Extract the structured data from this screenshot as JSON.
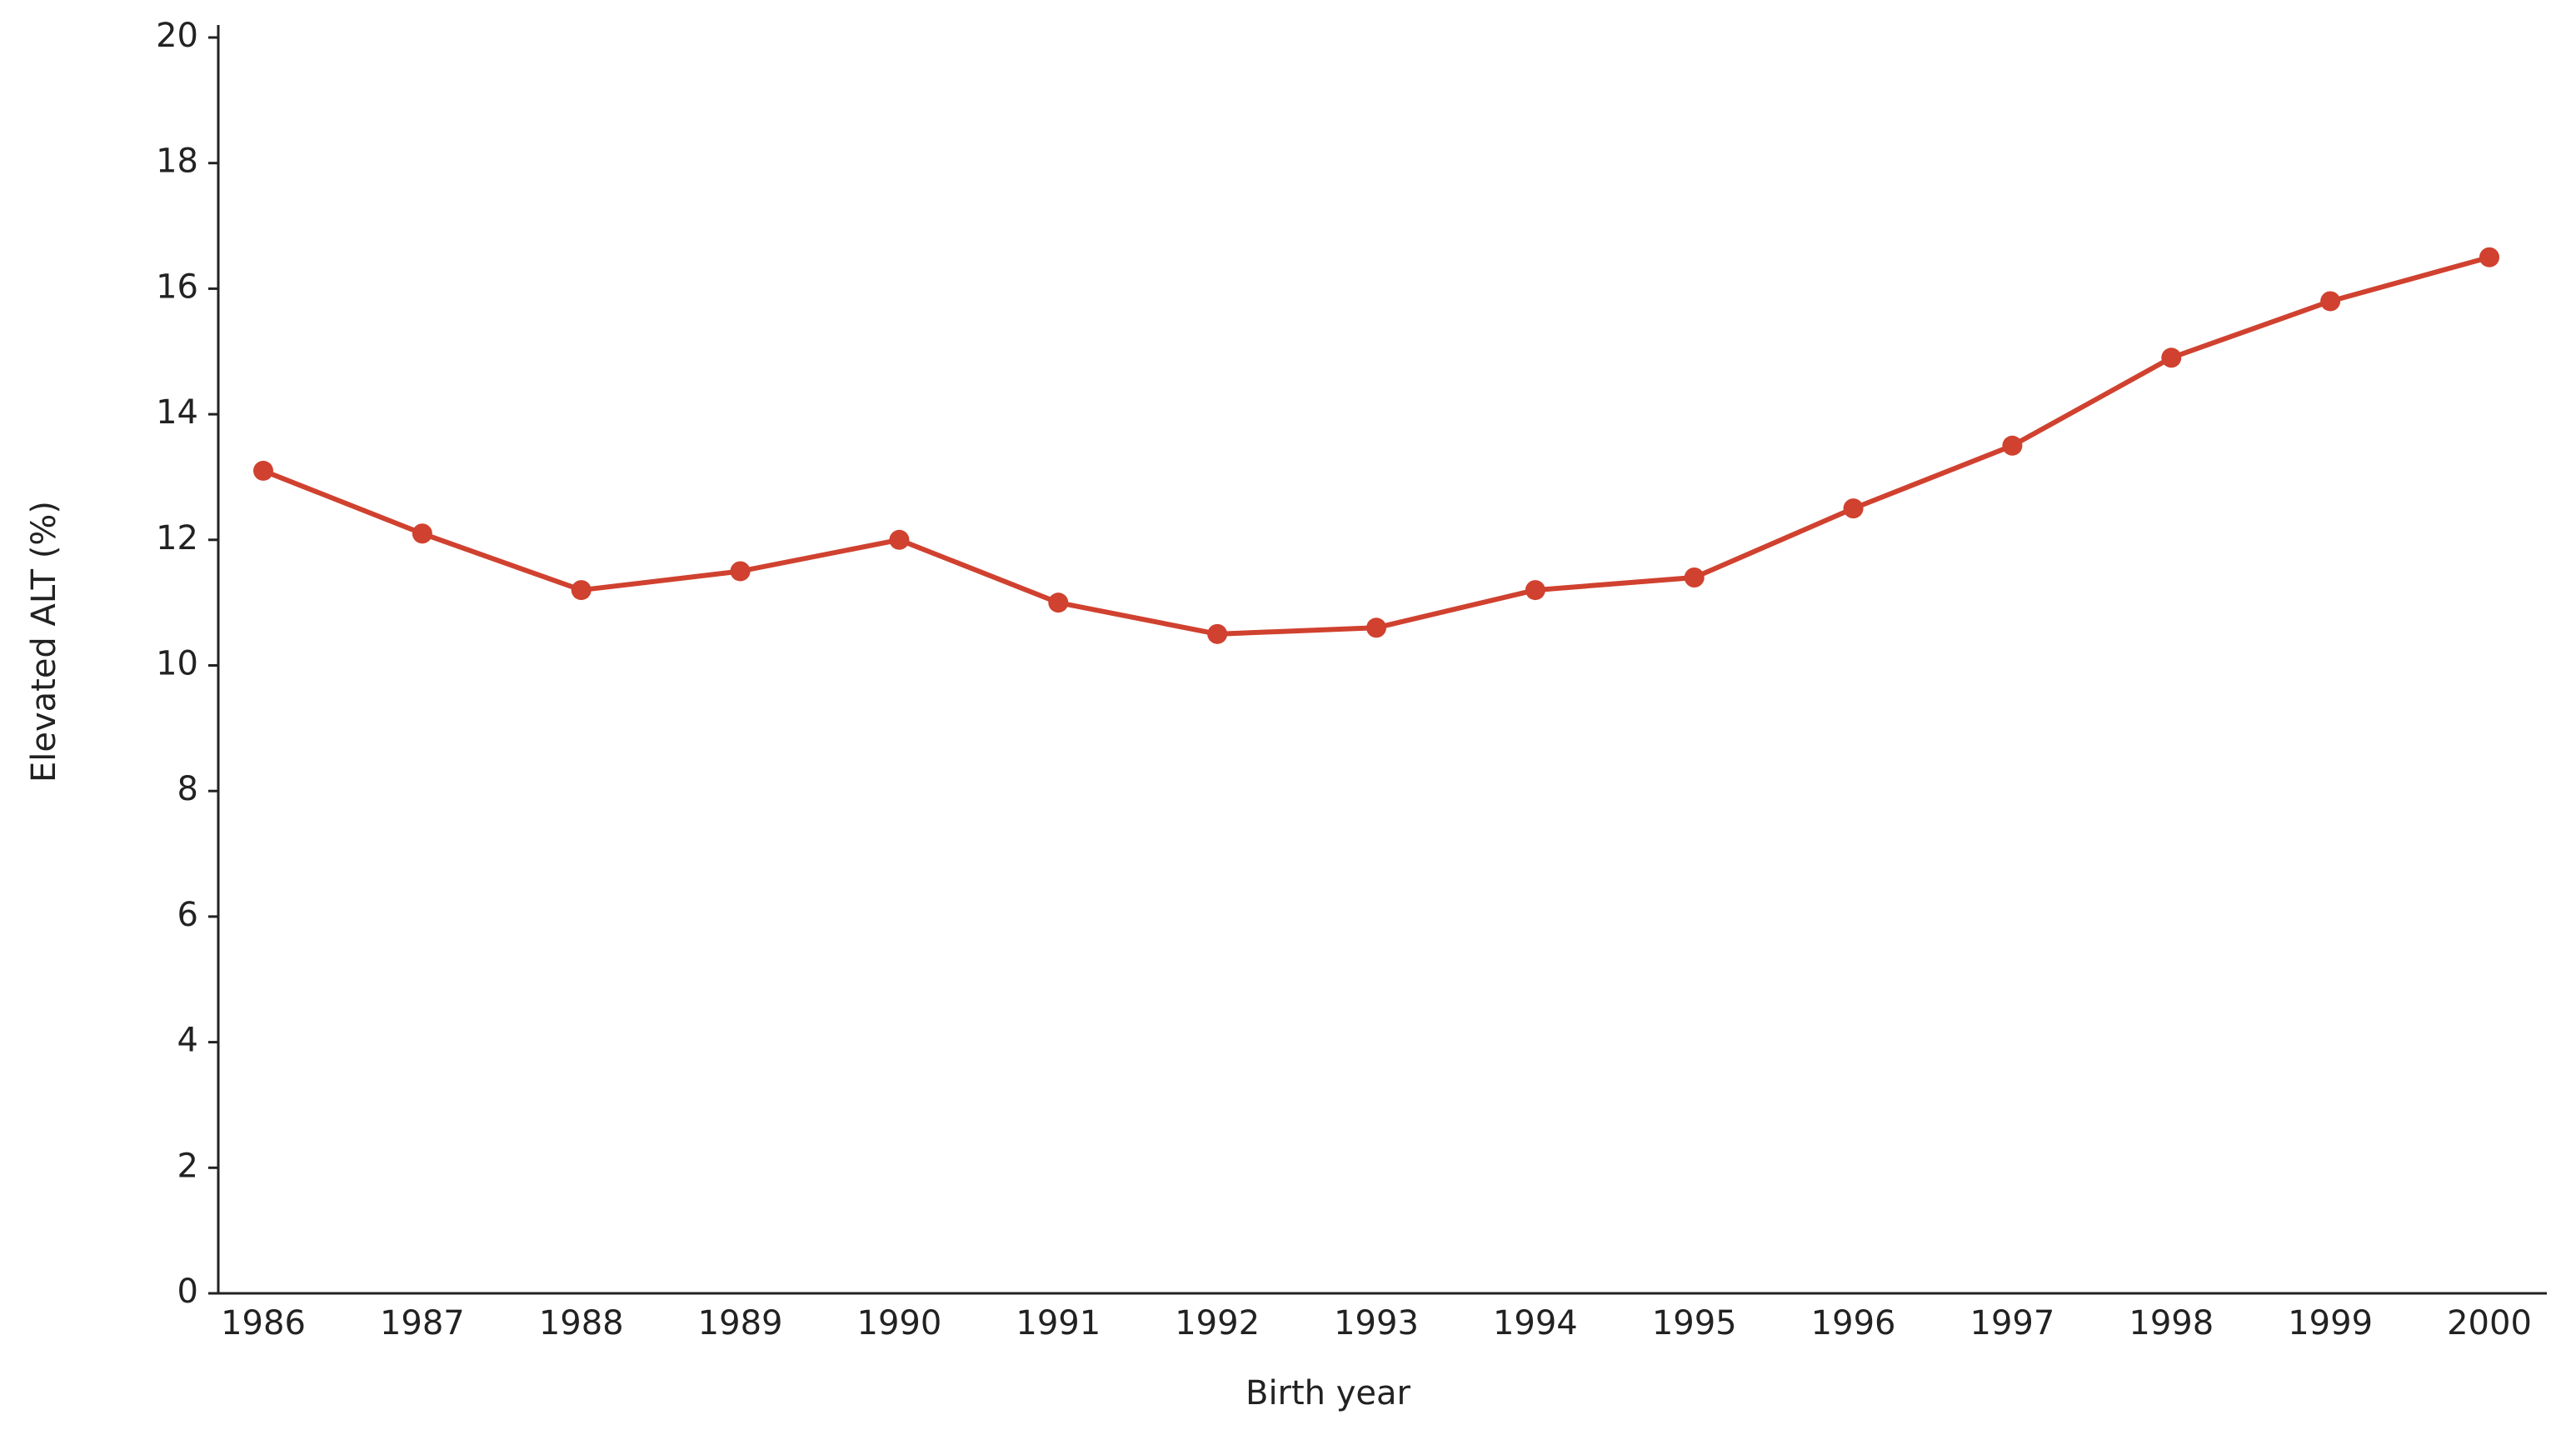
{
  "chart_data": {
    "type": "line",
    "x_label": "Birth year",
    "y_label": "Elevated ALT (%)",
    "categories": [
      "1986",
      "1987",
      "1988",
      "1989",
      "1990",
      "1991",
      "1992",
      "1993",
      "1994",
      "1995",
      "1996",
      "1997",
      "1998",
      "1999",
      "2000"
    ],
    "series": [
      {
        "name": "Elevated ALT",
        "color": "#d0412f",
        "values": [
          13.1,
          12.1,
          11.2,
          11.5,
          12.0,
          11.0,
          10.5,
          10.6,
          11.2,
          11.4,
          12.5,
          13.5,
          14.9,
          15.8,
          16.5
        ]
      }
    ],
    "ylim": [
      0,
      20
    ],
    "yticks": [
      0,
      2,
      4,
      6,
      8,
      10,
      12,
      14,
      16,
      18,
      20
    ],
    "grid": false
  }
}
